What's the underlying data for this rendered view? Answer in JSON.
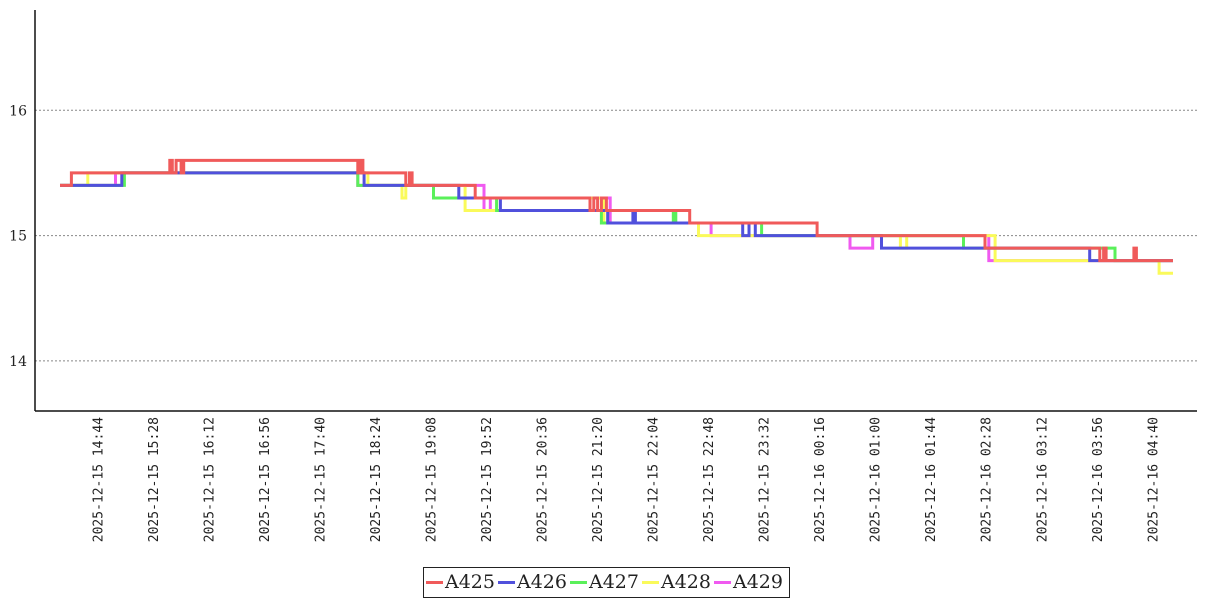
{
  "chart_data": {
    "type": "line",
    "title": "",
    "xlabel": "",
    "ylabel": "",
    "ylim": [
      13.6,
      16.8
    ],
    "grid": "horizontal-dotted",
    "legend_position": "bottom-center",
    "x_range": [
      "2025-12-15 14:14",
      "2025-12-16 04:56"
    ],
    "yticks": [
      "14",
      "15",
      "16"
    ],
    "xticks": [
      "2025-12-15 14:44",
      "2025-12-15 15:28",
      "2025-12-15 16:12",
      "2025-12-15 16:56",
      "2025-12-15 17:40",
      "2025-12-15 18:24",
      "2025-12-15 19:08",
      "2025-12-15 19:52",
      "2025-12-15 20:36",
      "2025-12-15 21:20",
      "2025-12-15 22:04",
      "2025-12-15 22:48",
      "2025-12-15 23:32",
      "2025-12-16 00:16",
      "2025-12-16 01:00",
      "2025-12-16 01:44",
      "2025-12-16 02:28",
      "2025-12-16 03:12",
      "2025-12-16 03:56",
      "2025-12-16 04:40"
    ],
    "series": [
      {
        "name": "A425",
        "color": "#f05a5a",
        "points": [
          [
            "2025-12-15 14:14",
            15.4
          ],
          [
            "2025-12-15 14:23",
            15.4
          ],
          [
            "2025-12-15 14:23",
            15.5
          ],
          [
            "2025-12-15 15:41",
            15.5
          ],
          [
            "2025-12-15 15:41",
            15.6
          ],
          [
            "2025-12-15 15:43",
            15.6
          ],
          [
            "2025-12-15 15:43",
            15.5
          ],
          [
            "2025-12-15 15:46",
            15.5
          ],
          [
            "2025-12-15 15:46",
            15.6
          ],
          [
            "2025-12-15 15:50",
            15.6
          ],
          [
            "2025-12-15 15:50",
            15.5
          ],
          [
            "2025-12-15 15:52",
            15.5
          ],
          [
            "2025-12-15 15:52",
            15.6
          ],
          [
            "2025-12-15 18:10",
            15.6
          ],
          [
            "2025-12-15 18:10",
            15.5
          ],
          [
            "2025-12-15 18:12",
            15.5
          ],
          [
            "2025-12-15 18:12",
            15.6
          ],
          [
            "2025-12-15 18:14",
            15.6
          ],
          [
            "2025-12-15 18:14",
            15.5
          ],
          [
            "2025-12-15 18:48",
            15.5
          ],
          [
            "2025-12-15 18:48",
            15.4
          ],
          [
            "2025-12-15 18:51",
            15.4
          ],
          [
            "2025-12-15 18:51",
            15.5
          ],
          [
            "2025-12-15 18:53",
            15.5
          ],
          [
            "2025-12-15 18:53",
            15.4
          ],
          [
            "2025-12-15 19:43",
            15.4
          ],
          [
            "2025-12-15 19:43",
            15.3
          ],
          [
            "2025-12-15 21:14",
            15.3
          ],
          [
            "2025-12-15 21:14",
            15.2
          ],
          [
            "2025-12-15 21:17",
            15.2
          ],
          [
            "2025-12-15 21:17",
            15.3
          ],
          [
            "2025-12-15 21:20",
            15.3
          ],
          [
            "2025-12-15 21:20",
            15.2
          ],
          [
            "2025-12-15 21:23",
            15.2
          ],
          [
            "2025-12-15 21:23",
            15.3
          ],
          [
            "2025-12-15 21:27",
            15.3
          ],
          [
            "2025-12-15 21:27",
            15.2
          ],
          [
            "2025-12-15 22:33",
            15.2
          ],
          [
            "2025-12-15 22:33",
            15.1
          ],
          [
            "2025-12-16 00:14",
            15.1
          ],
          [
            "2025-12-16 00:14",
            15.0
          ],
          [
            "2025-12-16 02:27",
            15.0
          ],
          [
            "2025-12-16 02:27",
            14.9
          ],
          [
            "2025-12-16 03:58",
            14.9
          ],
          [
            "2025-12-16 03:58",
            14.8
          ],
          [
            "2025-12-16 04:01",
            14.8
          ],
          [
            "2025-12-16 04:01",
            14.9
          ],
          [
            "2025-12-16 04:03",
            14.9
          ],
          [
            "2025-12-16 04:03",
            14.8
          ],
          [
            "2025-12-16 04:25",
            14.8
          ],
          [
            "2025-12-16 04:25",
            14.9
          ],
          [
            "2025-12-16 04:27",
            14.9
          ],
          [
            "2025-12-16 04:27",
            14.8
          ],
          [
            "2025-12-16 04:56",
            14.8
          ]
        ]
      },
      {
        "name": "A426",
        "color": "#5050dc",
        "points": [
          [
            "2025-12-15 14:14",
            15.4
          ],
          [
            "2025-12-15 15:03",
            15.4
          ],
          [
            "2025-12-15 15:03",
            15.5
          ],
          [
            "2025-12-15 18:15",
            15.5
          ],
          [
            "2025-12-15 18:15",
            15.4
          ],
          [
            "2025-12-15 19:30",
            15.4
          ],
          [
            "2025-12-15 19:30",
            15.3
          ],
          [
            "2025-12-15 20:03",
            15.3
          ],
          [
            "2025-12-15 20:03",
            15.2
          ],
          [
            "2025-12-15 21:28",
            15.2
          ],
          [
            "2025-12-15 21:28",
            15.1
          ],
          [
            "2025-12-15 21:48",
            15.1
          ],
          [
            "2025-12-15 21:48",
            15.2
          ],
          [
            "2025-12-15 21:50",
            15.2
          ],
          [
            "2025-12-15 21:50",
            15.1
          ],
          [
            "2025-12-15 23:15",
            15.1
          ],
          [
            "2025-12-15 23:15",
            15.0
          ],
          [
            "2025-12-15 23:20",
            15.0
          ],
          [
            "2025-12-15 23:20",
            15.1
          ],
          [
            "2025-12-15 23:25",
            15.1
          ],
          [
            "2025-12-15 23:25",
            15.0
          ],
          [
            "2025-12-16 01:05",
            15.0
          ],
          [
            "2025-12-16 01:05",
            14.9
          ],
          [
            "2025-12-16 03:50",
            14.9
          ],
          [
            "2025-12-16 03:50",
            14.8
          ],
          [
            "2025-12-16 04:56",
            14.8
          ]
        ]
      },
      {
        "name": "A427",
        "color": "#5af05a",
        "points": [
          [
            "2025-12-15 14:14",
            15.4
          ],
          [
            "2025-12-15 15:05",
            15.4
          ],
          [
            "2025-12-15 15:05",
            15.5
          ],
          [
            "2025-12-15 18:10",
            15.5
          ],
          [
            "2025-12-15 18:10",
            15.4
          ],
          [
            "2025-12-15 19:10",
            15.4
          ],
          [
            "2025-12-15 19:10",
            15.3
          ],
          [
            "2025-12-15 20:00",
            15.3
          ],
          [
            "2025-12-15 20:00",
            15.2
          ],
          [
            "2025-12-15 21:23",
            15.2
          ],
          [
            "2025-12-15 21:23",
            15.1
          ],
          [
            "2025-12-15 22:20",
            15.1
          ],
          [
            "2025-12-15 22:20",
            15.2
          ],
          [
            "2025-12-15 22:22",
            15.2
          ],
          [
            "2025-12-15 22:22",
            15.1
          ],
          [
            "2025-12-15 23:30",
            15.1
          ],
          [
            "2025-12-15 23:30",
            15.0
          ],
          [
            "2025-12-16 02:10",
            15.0
          ],
          [
            "2025-12-16 02:10",
            14.9
          ],
          [
            "2025-12-16 04:10",
            14.9
          ],
          [
            "2025-12-16 04:10",
            14.8
          ],
          [
            "2025-12-16 04:56",
            14.8
          ]
        ]
      },
      {
        "name": "A428",
        "color": "#fafa5a",
        "points": [
          [
            "2025-12-15 14:14",
            15.4
          ],
          [
            "2025-12-15 14:36",
            15.4
          ],
          [
            "2025-12-15 14:36",
            15.5
          ],
          [
            "2025-12-15 18:18",
            15.5
          ],
          [
            "2025-12-15 18:18",
            15.4
          ],
          [
            "2025-12-15 18:45",
            15.4
          ],
          [
            "2025-12-15 18:45",
            15.3
          ],
          [
            "2025-12-15 18:48",
            15.3
          ],
          [
            "2025-12-15 18:48",
            15.4
          ],
          [
            "2025-12-15 19:35",
            15.4
          ],
          [
            "2025-12-15 19:35",
            15.2
          ],
          [
            "2025-12-15 20:00",
            15.2
          ],
          [
            "2025-12-15 20:00",
            15.3
          ],
          [
            "2025-12-15 21:25",
            15.3
          ],
          [
            "2025-12-15 21:25",
            15.1
          ],
          [
            "2025-12-15 22:40",
            15.1
          ],
          [
            "2025-12-15 22:40",
            15.0
          ],
          [
            "2025-12-16 01:20",
            15.0
          ],
          [
            "2025-12-16 01:20",
            14.9
          ],
          [
            "2025-12-16 01:25",
            14.9
          ],
          [
            "2025-12-16 01:25",
            15.0
          ],
          [
            "2025-12-16 02:35",
            15.0
          ],
          [
            "2025-12-16 02:35",
            14.8
          ],
          [
            "2025-12-16 04:45",
            14.8
          ],
          [
            "2025-12-16 04:45",
            14.7
          ],
          [
            "2025-12-16 04:56",
            14.7
          ]
        ]
      },
      {
        "name": "A429",
        "color": "#f05af0",
        "points": [
          [
            "2025-12-15 14:14",
            15.4
          ],
          [
            "2025-12-15 14:58",
            15.4
          ],
          [
            "2025-12-15 14:58",
            15.5
          ],
          [
            "2025-12-15 18:10",
            15.5
          ],
          [
            "2025-12-15 18:10",
            15.4
          ],
          [
            "2025-12-15 19:50",
            15.4
          ],
          [
            "2025-12-15 19:50",
            15.2
          ],
          [
            "2025-12-15 19:55",
            15.2
          ],
          [
            "2025-12-15 19:55",
            15.3
          ],
          [
            "2025-12-15 21:30",
            15.3
          ],
          [
            "2025-12-15 21:30",
            15.1
          ],
          [
            "2025-12-15 22:50",
            15.1
          ],
          [
            "2025-12-15 22:50",
            15.0
          ],
          [
            "2025-12-16 00:40",
            15.0
          ],
          [
            "2025-12-16 00:40",
            14.9
          ],
          [
            "2025-12-16 00:58",
            14.9
          ],
          [
            "2025-12-16 00:58",
            15.0
          ],
          [
            "2025-12-16 02:30",
            15.0
          ],
          [
            "2025-12-16 02:30",
            14.8
          ],
          [
            "2025-12-16 04:56",
            14.8
          ]
        ]
      }
    ],
    "colors": {
      "axis": "#111111",
      "grid": "#888888"
    }
  }
}
